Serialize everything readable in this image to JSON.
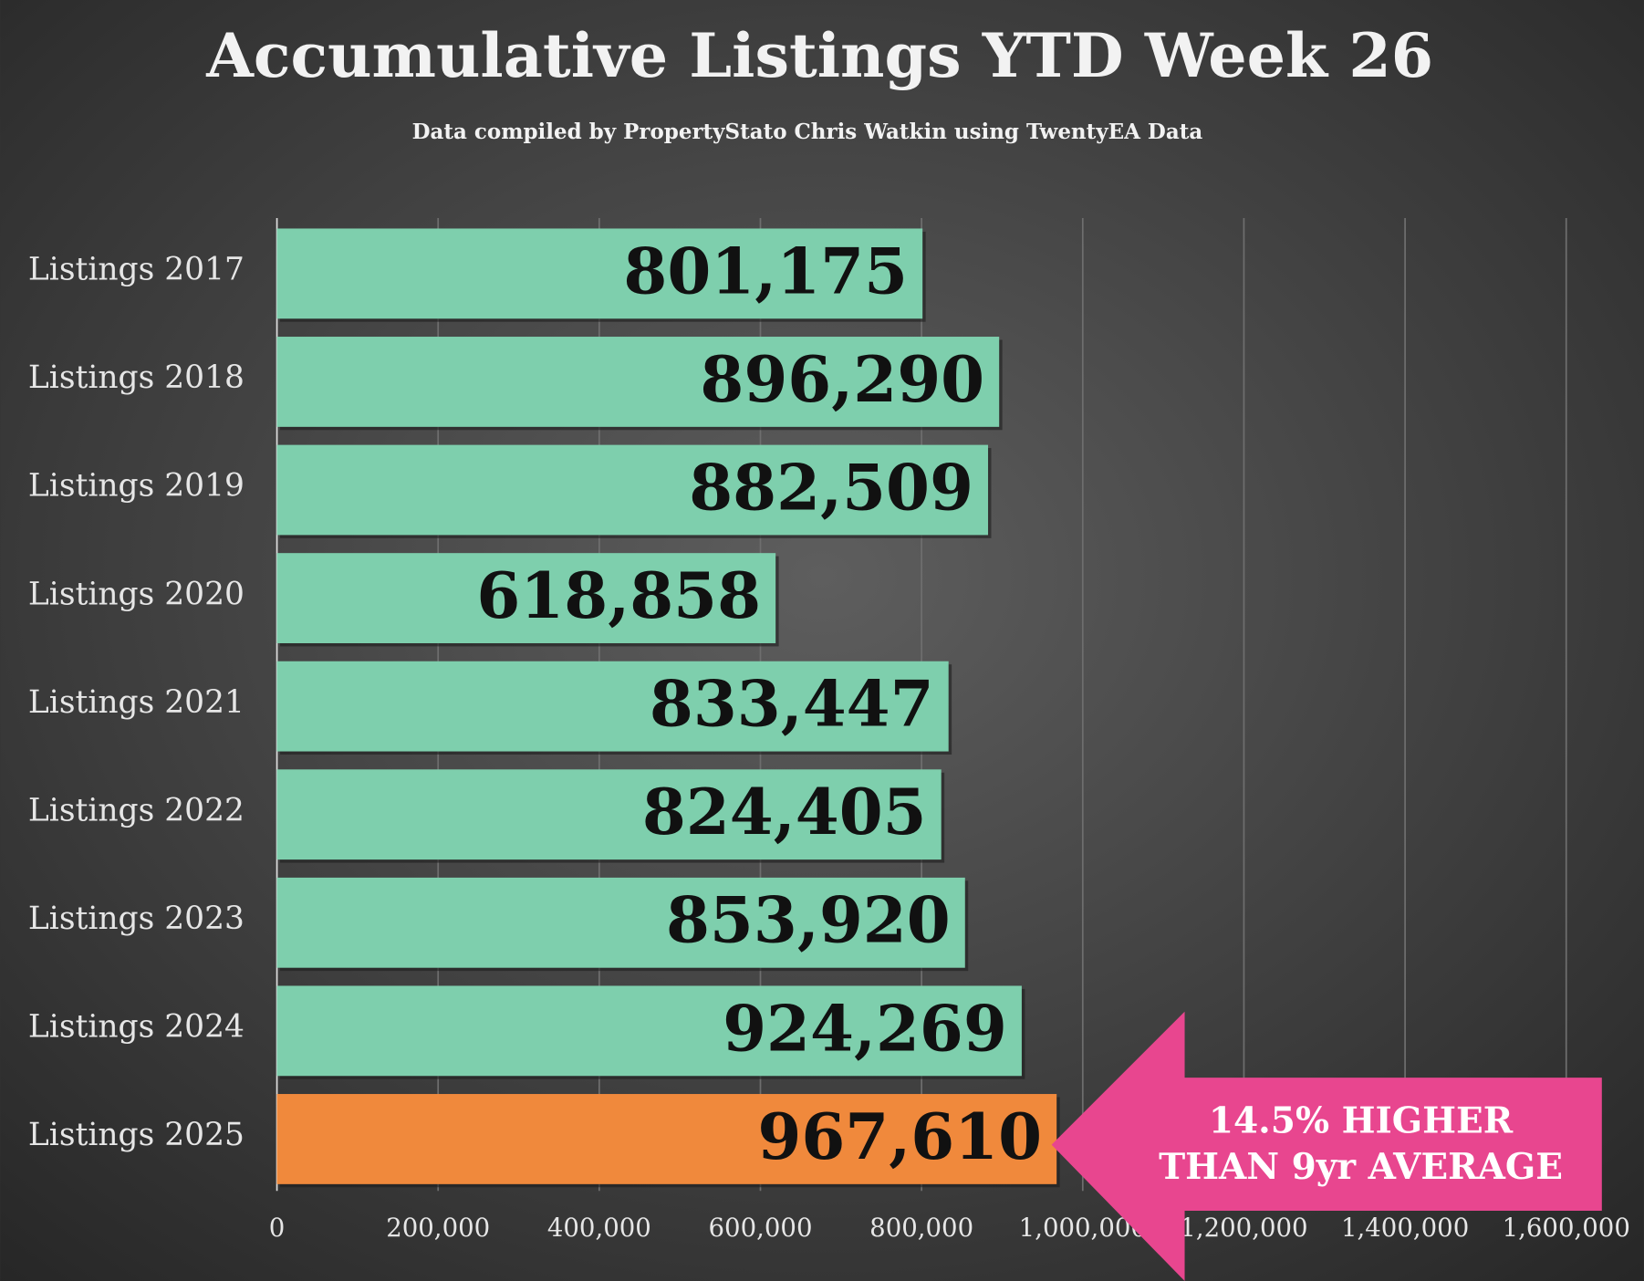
{
  "chart_data": {
    "type": "bar",
    "orientation": "horizontal",
    "title": "Accumulative Listings YTD Week 26",
    "subtitle": "Data compiled by PropertyStato Chris Watkin using TwentyEA Data",
    "categories": [
      "Listings 2017",
      "Listings 2018",
      "Listings 2019",
      "Listings 2020",
      "Listings 2021",
      "Listings 2022",
      "Listings 2023",
      "Listings 2024",
      "Listings 2025"
    ],
    "values": [
      801175,
      896290,
      882509,
      618858,
      833447,
      824405,
      853920,
      924269,
      967610
    ],
    "value_labels": [
      "801,175",
      "896,290",
      "882,509",
      "618,858",
      "833,447",
      "824,405",
      "853,920",
      "924,269",
      "967,610"
    ],
    "colors": [
      "#7ecfad",
      "#7ecfad",
      "#7ecfad",
      "#7ecfad",
      "#7ecfad",
      "#7ecfad",
      "#7ecfad",
      "#7ecfad",
      "#f0893c"
    ],
    "xlim": [
      0,
      1600000
    ],
    "xticks": [
      0,
      {
        "value": 200000,
        "label": "200,000"
      },
      {
        "value": 400000,
        "label": "400,000"
      },
      {
        "value": 600000,
        "label": "600,000"
      },
      {
        "value": 800000,
        "label": "800,000"
      },
      {
        "value": 1000000,
        "label": "1,000,000"
      },
      {
        "value": 1200000,
        "label": "1,200,000"
      },
      {
        "value": 1400000,
        "label": "1,400,000"
      },
      {
        "value": 1600000,
        "label": "1,600,000"
      }
    ],
    "grid": true,
    "annotation": [
      "14.5% HIGHER",
      "THAN 9yr AVERAGE"
    ],
    "annotation_color": "#e8468f"
  }
}
